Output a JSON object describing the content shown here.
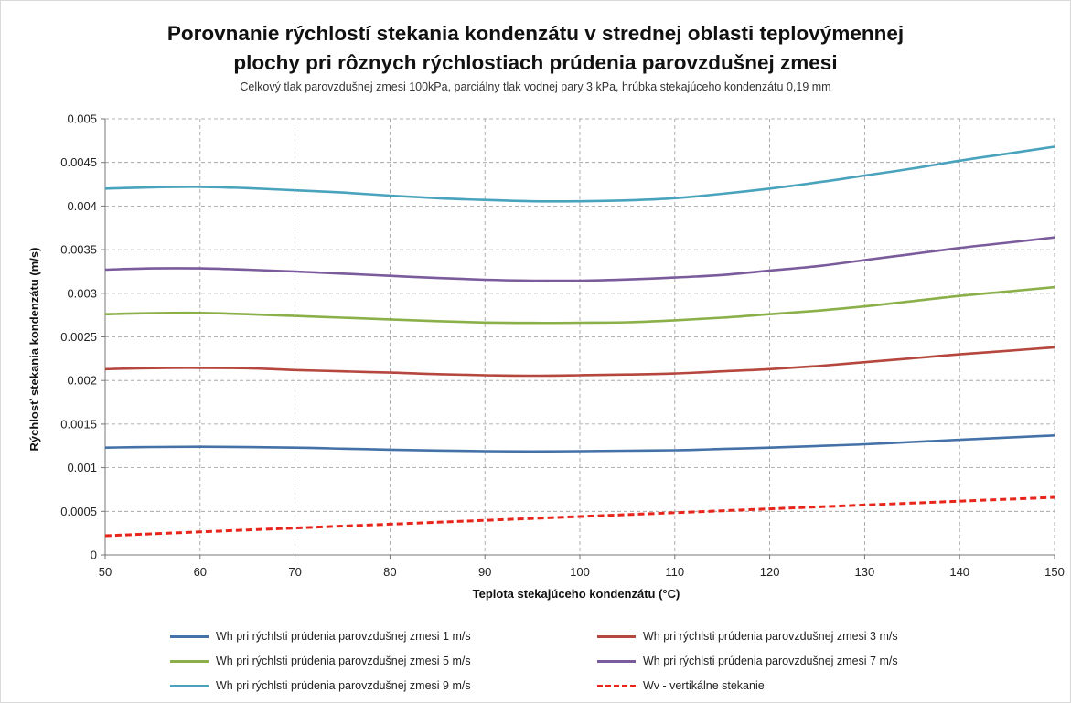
{
  "chart_data": {
    "type": "line",
    "title": "Porovnanie rýchlostí stekania kondenzátu v strednej oblasti teplovýmennej",
    "title_line2": "plochy pri rôznych rýchlostiach prúdenia parovzdušnej zmesi",
    "subtitle": "Celkový tlak parovzdušnej zmesi 100kPa, parciálny tlak vodnej pary 3 kPa, hrúbka stekajúceho kondenzátu 0,19 mm",
    "xlabel": "Teplota stekajúceho kondenzátu  (°C)",
    "ylabel": "Rýchlosť stekania kondenzátu (m/s)",
    "xlim": [
      50,
      150
    ],
    "ylim": [
      0,
      0.005
    ],
    "xticks": [
      "50",
      "60",
      "70",
      "80",
      "90",
      "100",
      "110",
      "120",
      "130",
      "140",
      "150"
    ],
    "yticks": [
      "0",
      "0.0005",
      "0.001",
      "0.0015",
      "0.002",
      "0.0025",
      "0.003",
      "0.0035",
      "0.004",
      "0.0045",
      "0.005"
    ],
    "grid": true,
    "legend_position": "bottom",
    "x": [
      50,
      55,
      60,
      65,
      70,
      75,
      80,
      85,
      90,
      95,
      100,
      105,
      110,
      115,
      120,
      125,
      130,
      135,
      140,
      145,
      150
    ],
    "series": [
      {
        "name": "Wh pri rýchlsti prúdenia parovzdušnej zmesi 1 m/s",
        "color": "#4472a8",
        "dashed": false,
        "values": [
          0.00123,
          0.001237,
          0.00124,
          0.001236,
          0.00123,
          0.001218,
          0.001207,
          0.001197,
          0.00119,
          0.001187,
          0.00119,
          0.001195,
          0.0012,
          0.001215,
          0.00123,
          0.001248,
          0.001268,
          0.001295,
          0.00132,
          0.001345,
          0.00137
        ]
      },
      {
        "name": "Wh pri rýchlsti prúdenia parovzdušnej zmesi 3 m/s",
        "color": "#b5473f",
        "dashed": false,
        "values": [
          0.00213,
          0.002142,
          0.002145,
          0.00214,
          0.00212,
          0.002105,
          0.00209,
          0.002072,
          0.00206,
          0.002055,
          0.00206,
          0.002068,
          0.00208,
          0.002105,
          0.00213,
          0.002165,
          0.00221,
          0.002255,
          0.0023,
          0.00234,
          0.00238
        ]
      },
      {
        "name": "Wh pri rýchlsti prúdenia parovzdušnej zmesi 5 m/s",
        "color": "#8bb04a",
        "dashed": false,
        "values": [
          0.00276,
          0.002772,
          0.002775,
          0.00276,
          0.00274,
          0.00272,
          0.0027,
          0.00268,
          0.002665,
          0.00266,
          0.002662,
          0.002668,
          0.00269,
          0.00272,
          0.00276,
          0.0028,
          0.00285,
          0.00291,
          0.00297,
          0.00302,
          0.00307
        ]
      },
      {
        "name": "Wh pri rýchlsti prúdenia parovzdušnej zmesi 7 m/s",
        "color": "#7a5b9b",
        "dashed": false,
        "values": [
          0.00327,
          0.003285,
          0.003285,
          0.00327,
          0.00325,
          0.003225,
          0.0032,
          0.003175,
          0.003155,
          0.003145,
          0.003145,
          0.003158,
          0.00318,
          0.00321,
          0.00326,
          0.00331,
          0.00338,
          0.00345,
          0.00352,
          0.00358,
          0.00364
        ]
      },
      {
        "name": "Wh pri rýchlsti prúdenia parovzdušnej zmesi 9 m/s",
        "color": "#4aa3bd",
        "dashed": false,
        "values": [
          0.0042,
          0.004215,
          0.00422,
          0.004205,
          0.00418,
          0.004155,
          0.00412,
          0.00409,
          0.00407,
          0.004055,
          0.004055,
          0.004065,
          0.00409,
          0.00414,
          0.0042,
          0.00427,
          0.00435,
          0.00443,
          0.00452,
          0.0046,
          0.00468
        ]
      },
      {
        "name": "Wv - vertikálne stekanie",
        "color": "#e8251b",
        "dashed": true,
        "values": [
          0.00022,
          0.000242,
          0.000264,
          0.000286,
          0.000308,
          0.00033,
          0.000352,
          0.000374,
          0.000396,
          0.000418,
          0.00044,
          0.000462,
          0.000484,
          0.000506,
          0.000528,
          0.00055,
          0.000572,
          0.000594,
          0.000616,
          0.000638,
          0.00066
        ]
      }
    ]
  }
}
